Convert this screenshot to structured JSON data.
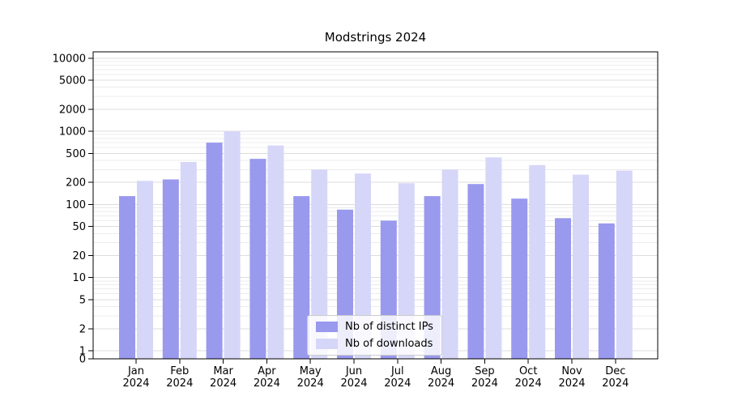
{
  "chart_data": {
    "type": "bar",
    "title": "Modstrings 2024",
    "categories": [
      "Jan",
      "Feb",
      "Mar",
      "Apr",
      "May",
      "Jun",
      "Jul",
      "Aug",
      "Sep",
      "Oct",
      "Nov",
      "Dec"
    ],
    "category_year": "2024",
    "series": [
      {
        "name": "Nb of distinct IPs",
        "color": "#9999ee",
        "values": [
          130,
          220,
          700,
          420,
          130,
          85,
          60,
          130,
          190,
          120,
          65,
          55
        ]
      },
      {
        "name": "Nb of downloads",
        "color": "#d6d6f8",
        "values": [
          210,
          380,
          1000,
          640,
          300,
          265,
          195,
          300,
          440,
          345,
          255,
          290
        ]
      }
    ],
    "y_ticks": [
      0,
      1,
      2,
      5,
      10,
      20,
      50,
      100,
      200,
      500,
      1000,
      2000,
      5000,
      10000
    ],
    "y_scale": "symlog",
    "ylim": [
      0,
      12000
    ],
    "xlabel": "",
    "ylabel": "",
    "grid": true,
    "legend_position": "lower center"
  }
}
